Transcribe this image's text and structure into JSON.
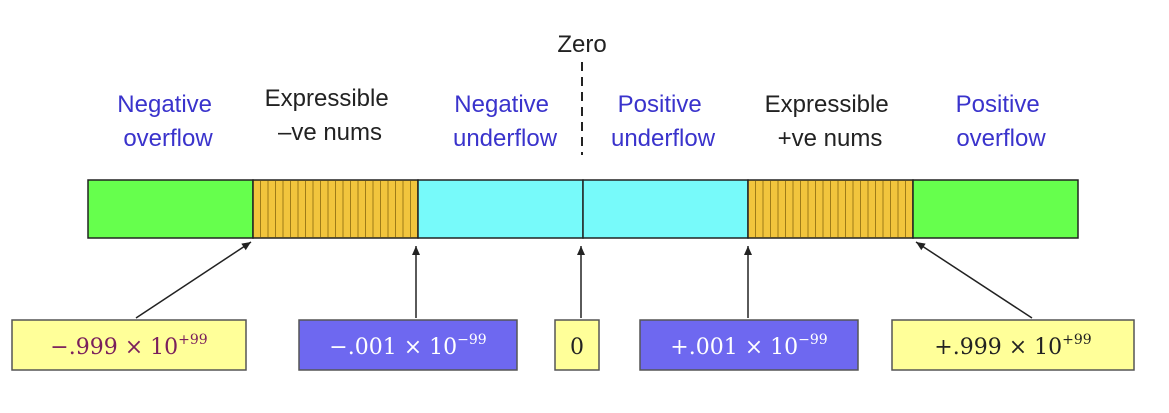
{
  "zero_label": "Zero",
  "regions": [
    {
      "line1": "Negative",
      "line2": "overflow",
      "color": "#3a33cc"
    },
    {
      "line1": "Expressible",
      "line2": "–ve nums",
      "color": "#222222"
    },
    {
      "line1": "Negative",
      "line2": "underflow",
      "color": "#3a33cc"
    },
    {
      "line1": "Positive",
      "line2": "underflow",
      "color": "#3a33cc"
    },
    {
      "line1": "Expressible",
      "line2": "+ve nums",
      "color": "#222222"
    },
    {
      "line1": "Positive",
      "line2": "overflow",
      "color": "#3a33cc"
    }
  ],
  "segment_colors": {
    "overflow": "#66ff4d",
    "expressible": "#f2c53d",
    "underflow": "#77fafa"
  },
  "values": [
    {
      "mantissa": "−.999 × 10",
      "exponent": "+99",
      "fill": "#ffff99",
      "text_color": "#7a1f5c"
    },
    {
      "mantissa": "−.001 × 10",
      "exponent": "−99",
      "fill": "#6e68f0",
      "text_color": "#ffffff"
    },
    {
      "mantissa": "0",
      "exponent": "",
      "fill": "#ffff99",
      "text_color": "#222222"
    },
    {
      "mantissa": "+.001 × 10",
      "exponent": "−99",
      "fill": "#6e68f0",
      "text_color": "#ffffff"
    },
    {
      "mantissa": "+.999 × 10",
      "exponent": "+99",
      "fill": "#ffff99",
      "text_color": "#222222"
    }
  ]
}
